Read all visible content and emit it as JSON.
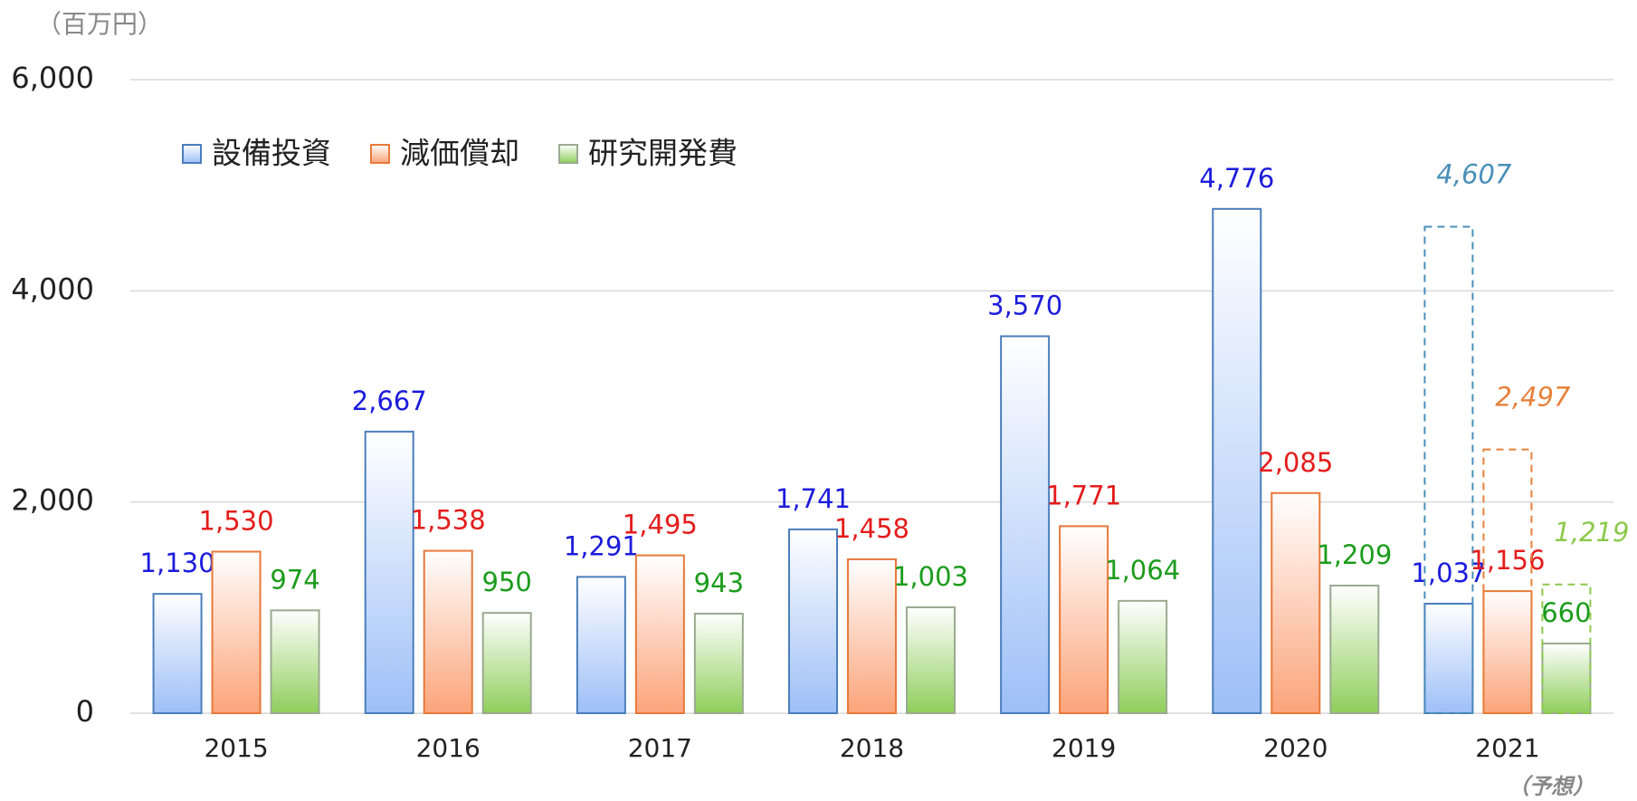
{
  "chart_data": {
    "type": "bar",
    "unit_label": "（百万円）",
    "annotation": "（予想）",
    "categories": [
      "2015",
      "2016",
      "2017",
      "2018",
      "2019",
      "2020",
      "2021"
    ],
    "series": [
      {
        "name": "設備投資",
        "color": "#9dbff7",
        "border": "#4a7ebb",
        "label_color": "#1c1cdc",
        "forecast_color": "#4a8fb8",
        "values": [
          1130,
          2667,
          1291,
          1741,
          3570,
          4776,
          1037
        ],
        "value_labels": [
          "1,130",
          "2,667",
          "1,291",
          "1,741",
          "3,570",
          "4,776",
          "1,037"
        ],
        "forecast": [
          null,
          null,
          null,
          null,
          null,
          null,
          4607
        ],
        "forecast_labels": [
          null,
          null,
          null,
          null,
          null,
          null,
          "4,607"
        ]
      },
      {
        "name": "減価償却",
        "color": "#fba47a",
        "border": "#e8793a",
        "label_color": "#e41c1c",
        "forecast_color": "#e8803a",
        "values": [
          1530,
          1538,
          1495,
          1458,
          1771,
          2085,
          1156
        ],
        "value_labels": [
          "1,530",
          "1,538",
          "1,495",
          "1,458",
          "1,771",
          "2,085",
          "1,156"
        ],
        "forecast": [
          null,
          null,
          null,
          null,
          null,
          null,
          2497
        ],
        "forecast_labels": [
          null,
          null,
          null,
          null,
          null,
          null,
          "2,497"
        ]
      },
      {
        "name": "研究開発費",
        "color": "#8fce5b",
        "border": "#9aaa90",
        "label_color": "#1c9c1c",
        "forecast_color": "#8cc84b",
        "values": [
          974,
          950,
          943,
          1003,
          1064,
          1209,
          660
        ],
        "value_labels": [
          "974",
          "950",
          "943",
          "1,003",
          "1,064",
          "1,209",
          "660"
        ],
        "forecast": [
          null,
          null,
          null,
          null,
          null,
          null,
          1219
        ],
        "forecast_labels": [
          null,
          null,
          null,
          null,
          null,
          null,
          "1,219"
        ]
      }
    ],
    "ylim": [
      0,
      6000
    ],
    "yticks": [
      0,
      {
        "value": 2000,
        "label": "2,000"
      },
      {
        "value": 4000,
        "label": "4,000"
      },
      {
        "value": 6000,
        "label": "6,000"
      }
    ],
    "grid": true
  }
}
